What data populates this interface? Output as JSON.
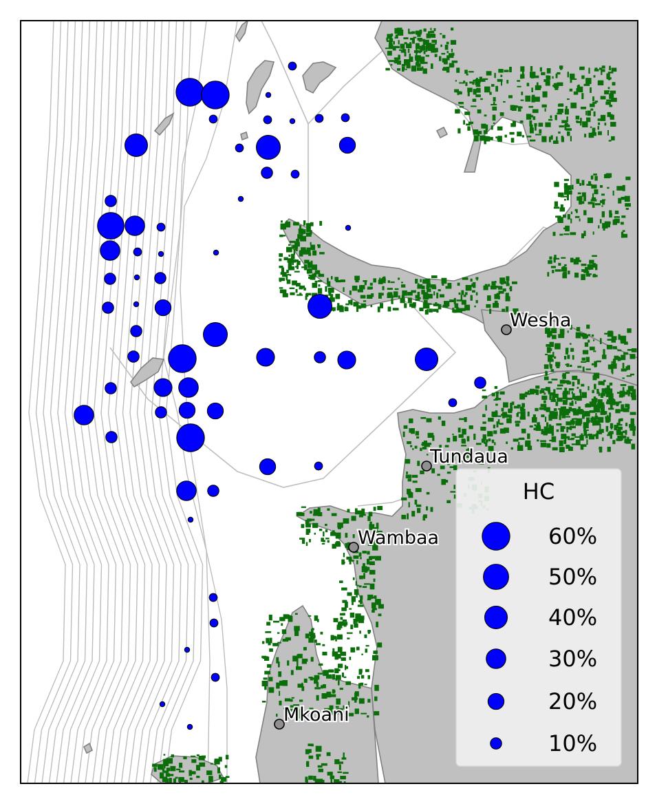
{
  "map": {
    "colors": {
      "land": "#c0c0c0",
      "coastline": "#808080",
      "mangrove": "#0b6e0b",
      "contour": "#bdbdbd",
      "site_fill": "#0000ff",
      "site_edge": "#000000",
      "town_fill": "#909090"
    },
    "towns": [
      {
        "name": "Wesha"
      },
      {
        "name": "Tundaua"
      },
      {
        "name": "Wambaa"
      },
      {
        "name": "Mkoani"
      }
    ],
    "legend": {
      "title": "HC",
      "entries": [
        {
          "label": "60%",
          "value": 60
        },
        {
          "label": "50%",
          "value": 50
        },
        {
          "label": "40%",
          "value": 40
        },
        {
          "label": "30%",
          "value": 30
        },
        {
          "label": "20%",
          "value": 20
        },
        {
          "label": "10%",
          "value": 10
        }
      ]
    },
    "sites_hc_percent": [
      5,
      60,
      60,
      2,
      5,
      5,
      2,
      5,
      5,
      40,
      5,
      20,
      45,
      10,
      5,
      2,
      10,
      55,
      30,
      5,
      2,
      30,
      5,
      2,
      2,
      10,
      2,
      10,
      10,
      45,
      20,
      2,
      10,
      45,
      10,
      60,
      25,
      10,
      25,
      40,
      10,
      25,
      30,
      10,
      5,
      10,
      20,
      20,
      30,
      10,
      60,
      20,
      5,
      30,
      10,
      2,
      5,
      5,
      2,
      5,
      2,
      2
    ]
  }
}
